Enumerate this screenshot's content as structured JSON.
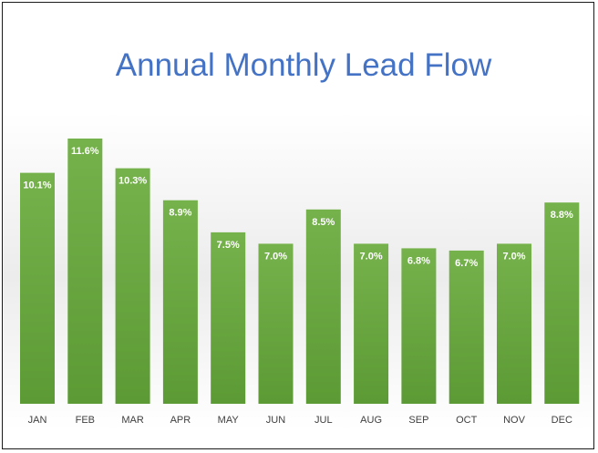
{
  "chart_data": {
    "type": "bar",
    "title": "Annual Monthly Lead Flow",
    "categories": [
      "JAN",
      "FEB",
      "MAR",
      "APR",
      "MAY",
      "JUN",
      "JUL",
      "AUG",
      "SEP",
      "OCT",
      "NOV",
      "DEC"
    ],
    "values": [
      10.1,
      11.6,
      10.3,
      8.9,
      7.5,
      7.0,
      8.5,
      7.0,
      6.8,
      6.7,
      7.0,
      8.8
    ],
    "data_labels": [
      "10.1%",
      "11.6%",
      "10.3%",
      "8.9%",
      "7.5%",
      "7.0%",
      "8.5%",
      "7.0%",
      "6.8%",
      "6.7%",
      "7.0%",
      "8.8%"
    ],
    "unit": "%",
    "xlabel": "",
    "ylabel": "",
    "ylim": [
      0,
      12
    ],
    "grid": false,
    "legend": "none",
    "bar_color": "#70ad47",
    "title_color": "#4472c4"
  }
}
